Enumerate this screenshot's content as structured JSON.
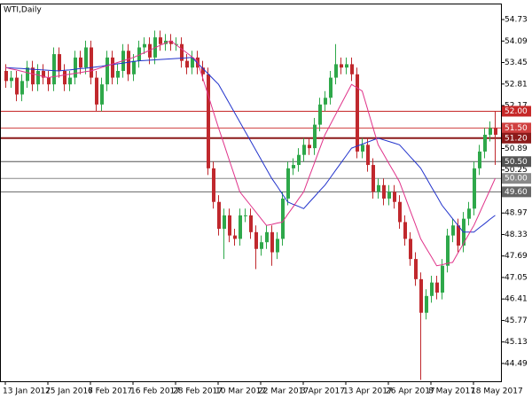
{
  "chart_data": {
    "type": "candlestick",
    "title": "WTI,Daily",
    "categories": [
      "13 Jan 2017",
      null,
      null,
      null,
      null,
      null,
      null,
      null,
      "25 Jan 2017",
      null,
      null,
      null,
      null,
      null,
      null,
      null,
      "6 Feb 2017",
      null,
      null,
      null,
      null,
      null,
      null,
      null,
      "16 Feb 2017",
      null,
      null,
      null,
      null,
      null,
      null,
      null,
      "28 Feb 2017",
      null,
      null,
      null,
      null,
      null,
      null,
      null,
      "10 Mar 2017",
      null,
      null,
      null,
      null,
      null,
      null,
      null,
      "22 Mar 2017",
      null,
      null,
      null,
      null,
      null,
      null,
      null,
      "3 Apr 2017",
      null,
      null,
      null,
      null,
      null,
      null,
      null,
      "13 Apr 2017",
      null,
      null,
      null,
      null,
      null,
      null,
      null,
      "26 Apr 2017",
      null,
      null,
      null,
      null,
      null,
      null,
      null,
      "8 May 2017",
      null,
      null,
      null,
      null,
      null,
      null,
      null,
      "18 May 2017",
      null,
      null,
      null,
      null
    ],
    "open": [
      53.2,
      52.9,
      53.0,
      52.5,
      52.9,
      53.3,
      52.8,
      53.2,
      53.0,
      52.8,
      53.7,
      53.2,
      52.8,
      53.0,
      53.6,
      53.3,
      53.9,
      53.0,
      52.2,
      52.8,
      53.6,
      53.0,
      53.2,
      53.8,
      53.1,
      53.5,
      53.9,
      54.0,
      53.6,
      54.2,
      54.0,
      54.1,
      54.0,
      54.0,
      53.5,
      53.3,
      53.6,
      53.3,
      53.1,
      50.3,
      49.3,
      48.5,
      48.9,
      48.3,
      48.2,
      48.9,
      48.9,
      48.4,
      47.9,
      48.1,
      48.4,
      47.8,
      48.2,
      49.4,
      50.3,
      50.4,
      50.7,
      51.0,
      50.9,
      51.6,
      52.2,
      52.4,
      53.0,
      53.4,
      53.3,
      53.4,
      53.1,
      50.8,
      51.0,
      50.4,
      49.6,
      49.8,
      49.4,
      49.6,
      49.3,
      48.7,
      48.2,
      47.6,
      47.0,
      46.0,
      46.5,
      46.9,
      46.6,
      47.4,
      48.3,
      48.6,
      48.0,
      48.8,
      49.1,
      50.3,
      50.8,
      51.3,
      51.5
    ],
    "high": [
      53.4,
      53.2,
      53.2,
      53.1,
      53.5,
      53.5,
      53.4,
      53.4,
      53.2,
      53.9,
      53.9,
      53.4,
      53.2,
      53.8,
      53.8,
      54.1,
      54.1,
      53.2,
      53.0,
      53.8,
      53.8,
      53.4,
      54.0,
      54.0,
      53.7,
      54.1,
      54.2,
      54.2,
      54.4,
      54.4,
      54.3,
      54.3,
      54.2,
      54.2,
      53.7,
      53.8,
      53.8,
      53.5,
      53.3,
      50.5,
      49.5,
      49.1,
      49.1,
      48.5,
      49.1,
      49.1,
      49.1,
      48.6,
      48.3,
      48.6,
      48.6,
      48.4,
      49.6,
      50.5,
      50.6,
      50.9,
      51.2,
      51.2,
      51.8,
      52.4,
      52.6,
      53.2,
      54.0,
      53.6,
      53.6,
      53.6,
      53.3,
      51.2,
      51.2,
      50.6,
      50.0,
      50.0,
      49.8,
      49.8,
      49.5,
      48.9,
      48.4,
      47.8,
      47.2,
      46.7,
      47.1,
      47.1,
      47.6,
      48.5,
      48.8,
      48.8,
      49.0,
      49.3,
      50.5,
      51.0,
      51.5,
      51.7,
      52.0
    ],
    "low": [
      52.7,
      52.7,
      52.3,
      52.3,
      52.7,
      52.6,
      52.6,
      52.8,
      52.6,
      52.6,
      53.0,
      52.6,
      52.6,
      52.8,
      53.1,
      53.1,
      52.8,
      52.0,
      52.0,
      52.6,
      52.8,
      52.8,
      53.0,
      52.9,
      52.9,
      53.3,
      53.7,
      53.4,
      53.4,
      53.8,
      53.8,
      53.8,
      53.8,
      53.3,
      53.1,
      53.1,
      53.1,
      52.9,
      50.1,
      49.1,
      48.3,
      47.6,
      48.1,
      48.0,
      48.0,
      48.7,
      48.2,
      47.3,
      47.7,
      47.9,
      47.4,
      47.6,
      48.0,
      49.2,
      50.1,
      50.2,
      50.5,
      50.7,
      50.7,
      51.4,
      52.0,
      52.2,
      52.8,
      53.1,
      53.1,
      52.9,
      50.6,
      50.6,
      50.2,
      49.4,
      49.4,
      49.2,
      49.2,
      49.1,
      48.5,
      48.0,
      47.4,
      46.8,
      44.0,
      45.8,
      46.3,
      46.4,
      46.4,
      47.2,
      48.1,
      47.8,
      47.8,
      48.6,
      48.9,
      50.1,
      50.6,
      51.1,
      50.4
    ],
    "close": [
      52.9,
      53.0,
      52.5,
      52.9,
      53.3,
      52.8,
      53.2,
      53.0,
      52.8,
      53.7,
      53.2,
      52.8,
      53.0,
      53.6,
      53.3,
      53.9,
      53.0,
      52.2,
      52.8,
      53.6,
      53.0,
      53.2,
      53.8,
      53.1,
      53.5,
      53.9,
      54.0,
      53.6,
      54.2,
      54.0,
      54.1,
      54.0,
      54.0,
      53.5,
      53.3,
      53.6,
      53.3,
      53.1,
      50.3,
      49.3,
      48.5,
      48.9,
      48.3,
      48.2,
      48.9,
      48.9,
      48.4,
      47.9,
      48.1,
      48.4,
      47.8,
      48.2,
      49.4,
      50.3,
      50.4,
      50.7,
      51.0,
      50.9,
      51.6,
      52.2,
      52.4,
      53.0,
      53.4,
      53.3,
      53.4,
      53.1,
      50.8,
      51.0,
      50.4,
      49.6,
      49.8,
      49.4,
      49.6,
      49.3,
      48.7,
      48.2,
      47.6,
      47.0,
      46.0,
      46.5,
      46.9,
      46.6,
      47.4,
      48.3,
      48.6,
      48.0,
      48.8,
      49.1,
      50.3,
      50.8,
      51.3,
      51.5,
      51.3
    ],
    "up_color": "#2ea84a",
    "down_color": "#c0282d",
    "lines": [
      {
        "color": "#2233cc",
        "values": [
          53.3,
          53.29,
          53.28,
          53.27,
          53.26,
          53.25,
          53.24,
          53.23,
          53.22,
          53.21,
          53.2,
          53.22,
          53.23,
          53.25,
          53.27,
          53.28,
          53.3,
          53.32,
          53.34,
          53.37,
          53.39,
          53.41,
          53.43,
          53.46,
          53.48,
          53.5,
          53.51,
          53.52,
          53.53,
          53.54,
          53.55,
          53.56,
          53.57,
          53.58,
          53.59,
          53.6,
          53.44,
          53.28,
          53.12,
          52.96,
          52.8,
          52.52,
          52.24,
          51.96,
          51.68,
          51.4,
          51.12,
          50.84,
          50.56,
          50.28,
          50.0,
          49.77,
          49.53,
          49.3,
          49.23,
          49.17,
          49.1,
          49.28,
          49.45,
          49.63,
          49.8,
          50.02,
          50.24,
          50.46,
          50.68,
          50.9,
          50.96,
          51.02,
          51.08,
          51.14,
          51.2,
          51.15,
          51.1,
          51.05,
          51.0,
          50.83,
          50.65,
          50.48,
          50.3,
          50.03,
          49.75,
          49.48,
          49.2,
          49.0,
          48.8,
          48.6,
          48.4,
          48.4,
          48.4,
          48.53,
          48.65,
          48.78,
          48.9
        ]
      },
      {
        "color": "#e0338a",
        "values": [
          53.3,
          53.26,
          53.23,
          53.19,
          53.15,
          53.11,
          53.08,
          53.04,
          53.0,
          53.03,
          53.05,
          53.08,
          53.1,
          53.13,
          53.15,
          53.18,
          53.2,
          53.25,
          53.3,
          53.35,
          53.4,
          53.45,
          53.5,
          53.55,
          53.6,
          53.67,
          53.74,
          53.81,
          53.89,
          53.96,
          54.03,
          54.1,
          53.98,
          53.86,
          53.74,
          53.62,
          53.5,
          53.0,
          52.5,
          52.0,
          51.5,
          51.03,
          50.55,
          50.08,
          49.6,
          49.4,
          49.2,
          49.0,
          48.8,
          48.6,
          48.63,
          48.67,
          48.7,
          48.93,
          49.15,
          49.38,
          49.6,
          50.03,
          50.45,
          50.88,
          51.3,
          51.6,
          51.9,
          52.2,
          52.5,
          52.8,
          52.7,
          52.6,
          52.07,
          51.53,
          51.0,
          50.73,
          50.45,
          50.18,
          49.9,
          49.48,
          49.05,
          48.63,
          48.2,
          47.93,
          47.67,
          47.4,
          47.43,
          47.47,
          47.5,
          47.78,
          48.05,
          48.33,
          48.6,
          48.95,
          49.3,
          49.65,
          50.0
        ]
      }
    ],
    "levels": [
      {
        "value": 52,
        "label": "52.00",
        "color": "#c62828"
      },
      {
        "value": 51.5,
        "label": "51.50",
        "color": "#d04040"
      },
      {
        "value": 51.2,
        "label": "51.20",
        "color": "#8b1a1a"
      },
      {
        "value": 50.5,
        "label": "50.50",
        "color": "#555555"
      },
      {
        "value": 50,
        "label": "50.00",
        "color": "#888888"
      },
      {
        "value": 49.6,
        "label": "49.60",
        "color": "#666666"
      }
    ],
    "ylim": [
      43.96,
      55.18
    ],
    "yticks": [
      54.73,
      54.09,
      53.45,
      52.81,
      52.17,
      50.89,
      50.25,
      48.97,
      48.33,
      47.69,
      47.05,
      46.41,
      45.77,
      45.13,
      44.49
    ]
  }
}
